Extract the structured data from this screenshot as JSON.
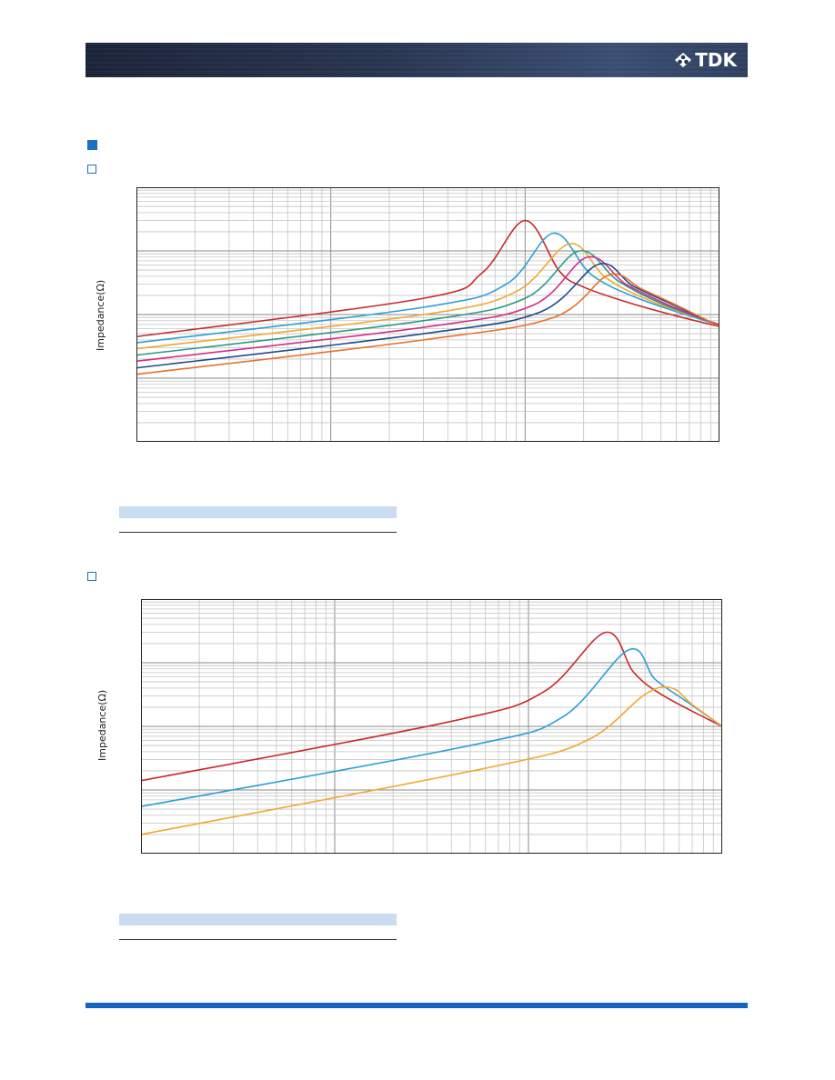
{
  "header": {
    "logo_text": "TDK",
    "logo_icon": "tdk-emblem-icon",
    "band_color": "#283550"
  },
  "accent_color": "#1c6fc2",
  "footer_color": "#1565c0",
  "chart_data": [
    {
      "type": "line",
      "scale": "log-log",
      "ylabel": "Impedance(Ω)",
      "grid": true,
      "xlim": [
        1,
        1000
      ],
      "ylim": [
        0.1,
        1000
      ],
      "series": [
        {
          "color": "#c8282d",
          "x": [
            1,
            30,
            60,
            100,
            150,
            200,
            350,
            600,
            1000
          ],
          "y": [
            4.5,
            18,
            45,
            300,
            48,
            27,
            15,
            9.5,
            6.5
          ]
        },
        {
          "color": "#2a9fd6",
          "x": [
            1,
            30,
            80,
            140,
            220,
            400,
            1000
          ],
          "y": [
            3.6,
            13,
            30,
            190,
            42,
            17,
            6.8
          ]
        },
        {
          "color": "#f0a830",
          "x": [
            1,
            30,
            90,
            170,
            260,
            450,
            1000
          ],
          "y": [
            2.9,
            10,
            23,
            130,
            38,
            16,
            7.0
          ]
        },
        {
          "color": "#2a9a86",
          "x": [
            1,
            30,
            100,
            190,
            300,
            500,
            1000
          ],
          "y": [
            2.3,
            8,
            18,
            100,
            34,
            15,
            6.9
          ]
        },
        {
          "color": "#d42c86",
          "x": [
            1,
            30,
            110,
            210,
            330,
            550,
            1000
          ],
          "y": [
            1.85,
            6.3,
            14,
            80,
            30,
            14,
            6.8
          ]
        },
        {
          "color": "#1e4a8c",
          "x": [
            1,
            30,
            120,
            240,
            360,
            600,
            1000
          ],
          "y": [
            1.45,
            5,
            11,
            62,
            28,
            13.5,
            6.6
          ]
        },
        {
          "color": "#e8722a",
          "x": [
            1,
            30,
            140,
            270,
            400,
            650,
            1000
          ],
          "y": [
            1.15,
            4,
            9,
            42,
            25,
            12.5,
            6.5
          ]
        }
      ]
    },
    {
      "type": "line",
      "scale": "log-log",
      "ylabel": "Impedance(Ω)",
      "grid": true,
      "xlim": [
        1,
        1000
      ],
      "ylim": [
        0.1,
        1000
      ],
      "series": [
        {
          "color": "#c8282d",
          "x": [
            1,
            40,
            120,
            250,
            350,
            500,
            1000
          ],
          "y": [
            1.4,
            12,
            35,
            300,
            70,
            30,
            10
          ]
        },
        {
          "color": "#2a9fd6",
          "x": [
            1,
            50,
            150,
            330,
            450,
            650,
            1000
          ],
          "y": [
            0.55,
            5,
            14,
            160,
            55,
            25,
            10
          ]
        },
        {
          "color": "#f0a830",
          "x": [
            1,
            60,
            200,
            400,
            550,
            700,
            1000
          ],
          "y": [
            0.2,
            2.2,
            6,
            32,
            40,
            22,
            10
          ]
        }
      ]
    }
  ]
}
